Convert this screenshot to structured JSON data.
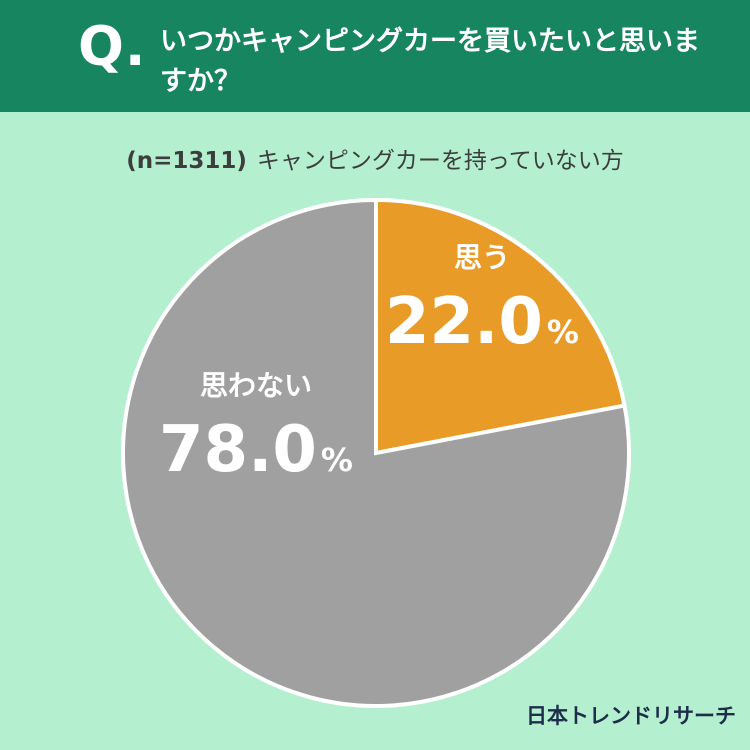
{
  "header": {
    "q_mark": "Q.",
    "question": "いつかキャンピングカーを買いたいと思いますか？"
  },
  "subtitle": {
    "sample": "(n=1311)",
    "target": "キャンピングカーを持っていない方"
  },
  "chart_data": {
    "type": "pie",
    "title": "いつかキャンピングカーを買いたいと思いますか？",
    "slices": [
      {
        "label": "思う",
        "value": 22.0,
        "display": "22.0",
        "unit": "%",
        "color": "#e99b28"
      },
      {
        "label": "思わない",
        "value": 78.0,
        "display": "78.0",
        "unit": "%",
        "color": "#a0a0a0"
      }
    ],
    "start": "12 o'clock",
    "direction": "clockwise"
  },
  "brand": {
    "text": "日本トレンドリサーチ"
  }
}
